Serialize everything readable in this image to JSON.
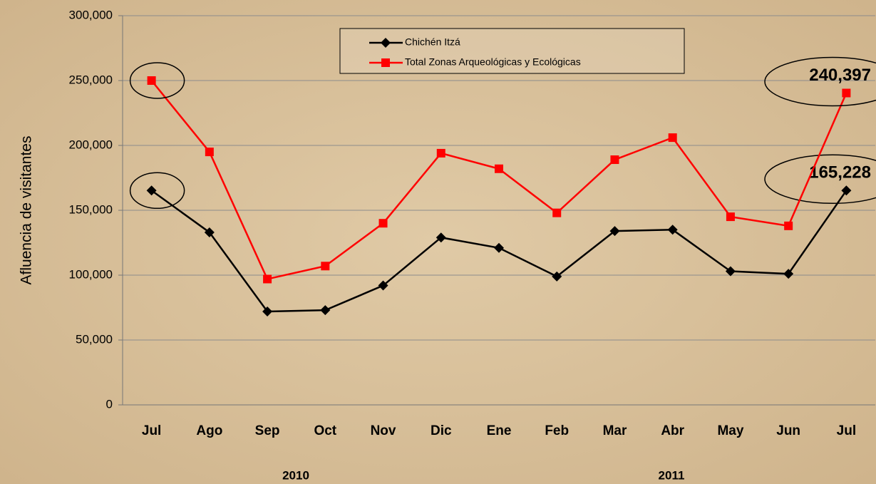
{
  "chart_data": {
    "type": "line",
    "y_label": "Afluencia de visitantes",
    "categories": [
      "Jul",
      "Ago",
      "Sep",
      "Oct",
      "Nov",
      "Dic",
      "Ene",
      "Feb",
      "Mar",
      "Abr",
      "May",
      "Jun",
      "Jul"
    ],
    "year_labels": [
      "2010",
      "2011"
    ],
    "series": [
      {
        "name": "Chichén Itzá",
        "color": "#000000",
        "marker": "diamond",
        "values": [
          165228,
          133000,
          72000,
          73000,
          92000,
          129000,
          121000,
          99000,
          134000,
          135000,
          103000,
          101000,
          165228
        ],
        "value_labels": [
          null,
          null,
          null,
          null,
          null,
          null,
          null,
          null,
          null,
          null,
          null,
          null,
          "165,228"
        ]
      },
      {
        "name": "Total Zonas Arqueológicas y Ecológicas",
        "color": "#ff0000",
        "marker": "square",
        "values": [
          250000,
          195000,
          97000,
          107000,
          140000,
          194000,
          182000,
          148000,
          189000,
          206000,
          145000,
          138000,
          240397
        ],
        "value_labels": [
          null,
          null,
          null,
          null,
          null,
          null,
          null,
          null,
          null,
          null,
          null,
          null,
          "240,397"
        ]
      }
    ],
    "ylim": [
      0,
      300000
    ],
    "yticks": [
      {
        "value": 0,
        "label": "0"
      },
      {
        "value": 50000,
        "label": "50,000"
      },
      {
        "value": 100000,
        "label": "100,000"
      },
      {
        "value": 150000,
        "label": "150,000"
      },
      {
        "value": 200000,
        "label": "200,000"
      },
      {
        "value": 250000,
        "label": "250,000"
      },
      {
        "value": 300000,
        "label": "300,000"
      }
    ],
    "grid": true
  }
}
